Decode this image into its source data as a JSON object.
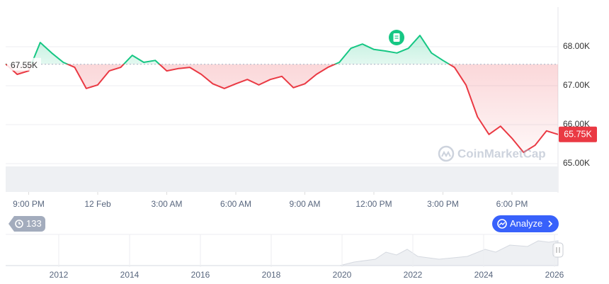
{
  "chart_data": {
    "type": "line",
    "x": [
      -1,
      -0.5,
      0,
      0.5,
      1,
      1.5,
      2,
      2.5,
      3,
      3.5,
      4,
      4.5,
      5,
      5.5,
      6,
      6.5,
      7,
      7.5,
      8,
      8.5,
      9,
      9.5,
      10,
      10.5,
      11,
      11.5,
      12,
      12.5,
      13,
      13.5,
      14,
      14.5,
      15,
      15.5,
      16,
      16.5,
      17,
      17.5,
      18,
      18.5,
      19,
      19.5,
      20,
      20.5,
      21,
      21.5,
      22,
      22.5,
      23
    ],
    "values": [
      67560,
      67290,
      67380,
      68110,
      67840,
      67600,
      67470,
      66930,
      67020,
      67380,
      67470,
      67780,
      67600,
      67650,
      67380,
      67440,
      67470,
      67290,
      67050,
      66930,
      67050,
      67160,
      67020,
      67160,
      67240,
      66950,
      67050,
      67290,
      67470,
      67600,
      67960,
      68070,
      67930,
      67890,
      67840,
      67960,
      68290,
      67840,
      67650,
      67470,
      67020,
      66200,
      65750,
      65960,
      65650,
      65290,
      65470,
      65840,
      65750
    ],
    "xlim": [
      -1,
      23
    ],
    "xticks": [
      {
        "value": 0,
        "label": "9:00 PM"
      },
      {
        "value": 3,
        "label": "12 Feb"
      },
      {
        "value": 6,
        "label": "3:00 AM"
      },
      {
        "value": 9,
        "label": "6:00 AM"
      },
      {
        "value": 12,
        "label": "9:00 AM"
      },
      {
        "value": 15,
        "label": "12:00 PM"
      },
      {
        "value": 18,
        "label": "3:00 PM"
      },
      {
        "value": 21,
        "label": "6:00 PM"
      }
    ],
    "ylim": [
      65000,
      69000
    ],
    "yticks": [
      {
        "value": 65000,
        "label": "65.00K"
      },
      {
        "value": 66000,
        "label": "66.00K"
      },
      {
        "value": 67000,
        "label": "67.00K"
      },
      {
        "value": 68000,
        "label": "68.00K"
      }
    ],
    "grid": true,
    "baseline": {
      "value": 67550,
      "label": "67.55K"
    },
    "current_price_label": "65.75K",
    "up_color": "#16c784",
    "down_color": "#ea3943",
    "watermark": "CoinMarketCap",
    "history_count": 133,
    "analyze_button": "Analyze",
    "navigator": {
      "xlim": [
        2010.5,
        2026.1
      ],
      "xticks": [
        2012,
        2014,
        2016,
        2018,
        2020,
        2022,
        2024,
        2026
      ]
    }
  }
}
